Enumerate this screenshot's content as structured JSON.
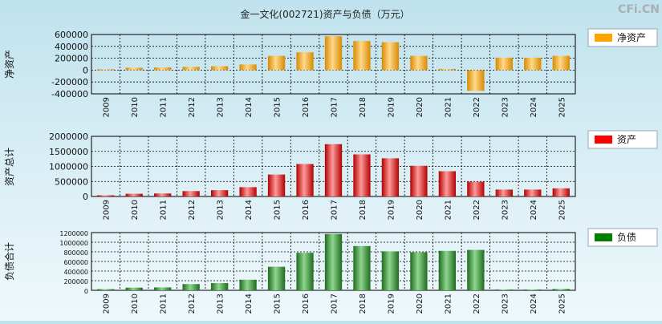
{
  "title": "金一文化(002721)资产与负债（万元）",
  "watermark": "CFi.CN",
  "chart_data": [
    {
      "type": "bar",
      "ylabel": "净资产",
      "legend": "净资产",
      "legend_color": "#ffa500",
      "color_light": "#ffd98a",
      "color_dark": "#d98a00",
      "ylim": [
        -400000,
        600000
      ],
      "yticks": [
        600000,
        400000,
        200000,
        0,
        -200000,
        -400000
      ],
      "ytick_labels": [
        "600000",
        "400000",
        "200000",
        "0",
        "-200000",
        "-400000"
      ],
      "categories": [
        "2009",
        "2010",
        "2011",
        "2012",
        "2013",
        "2014",
        "2015",
        "2016",
        "2017",
        "2018",
        "2019",
        "2020",
        "2021",
        "2022",
        "2023",
        "2024",
        "2025"
      ],
      "values": [
        15000,
        40000,
        45000,
        55000,
        65000,
        95000,
        240000,
        300000,
        570000,
        490000,
        470000,
        240000,
        20000,
        -350000,
        210000,
        210000,
        240000
      ]
    },
    {
      "type": "bar",
      "ylabel": "资产总计",
      "legend": "资产",
      "legend_color": "#ff0000",
      "color_light": "#ff9a9a",
      "color_dark": "#b30000",
      "ylim": [
        0,
        2000000
      ],
      "yticks": [
        2000000,
        1500000,
        1000000,
        500000,
        0
      ],
      "ytick_labels": [
        "2000000",
        "1500000",
        "1000000",
        "500000",
        "0"
      ],
      "categories": [
        "2009",
        "2010",
        "2011",
        "2012",
        "2013",
        "2014",
        "2015",
        "2016",
        "2017",
        "2018",
        "2019",
        "2020",
        "2021",
        "2022",
        "2023",
        "2024",
        "2025"
      ],
      "values": [
        40000,
        90000,
        100000,
        180000,
        210000,
        310000,
        730000,
        1080000,
        1740000,
        1400000,
        1270000,
        1020000,
        840000,
        490000,
        230000,
        230000,
        270000
      ]
    },
    {
      "type": "bar",
      "ylabel": "负债合计",
      "legend": "负债",
      "legend_color": "#008000",
      "color_light": "#8fd68f",
      "color_dark": "#1f6b1f",
      "ylim": [
        0,
        1200000
      ],
      "yticks": [
        1200000,
        1000000,
        800000,
        600000,
        400000,
        200000,
        0
      ],
      "ytick_labels": [
        "1200000",
        "1000000",
        "800000",
        "600000",
        "400000",
        "200000",
        "0"
      ],
      "categories": [
        "2009",
        "2010",
        "2011",
        "2012",
        "2013",
        "2014",
        "2015",
        "2016",
        "2017",
        "2018",
        "2019",
        "2020",
        "2021",
        "2022",
        "2023",
        "2024",
        "2025"
      ],
      "values": [
        25000,
        55000,
        60000,
        130000,
        150000,
        220000,
        490000,
        780000,
        1170000,
        920000,
        810000,
        790000,
        820000,
        840000,
        18000,
        18000,
        28000
      ]
    }
  ]
}
